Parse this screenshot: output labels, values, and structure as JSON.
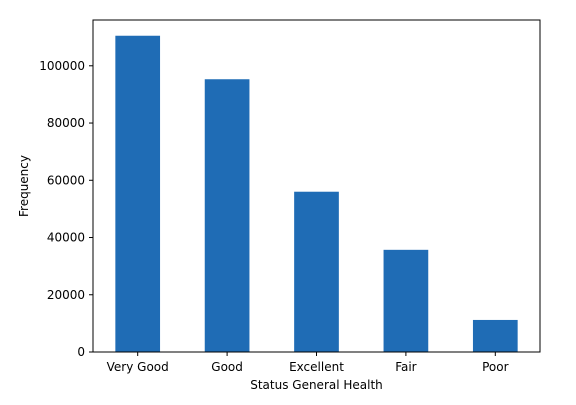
{
  "chart_data": {
    "type": "bar",
    "title": "",
    "xlabel": "Status General Health",
    "ylabel": "Frequency",
    "categories": [
      "Very Good",
      "Good",
      "Excellent",
      "Fair",
      "Poor"
    ],
    "values": [
      110500,
      95300,
      56000,
      35700,
      11200
    ],
    "ylim": [
      0,
      116000
    ],
    "yticks": [
      0,
      20000,
      40000,
      60000,
      80000,
      100000
    ],
    "ytick_labels": [
      "0",
      "20000",
      "40000",
      "60000",
      "80000",
      "100000"
    ],
    "grid": false,
    "bar_color": "#1f6cb5"
  }
}
